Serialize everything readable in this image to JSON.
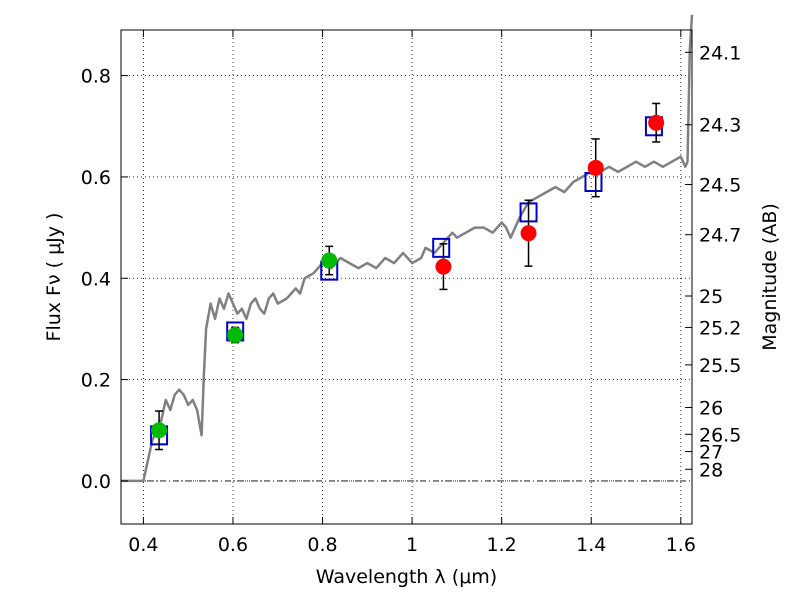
{
  "chart_data": {
    "type": "scatter",
    "title": "",
    "xlabel": "Wavelength  λ (μm)",
    "ylabel": "Flux  Fν  ( μJy )",
    "y2label": "Magnitude (AB)",
    "xlim": [
      0.35,
      1.625
    ],
    "ylim": [
      -0.085,
      0.89
    ],
    "grid": true,
    "xticks": [
      {
        "value": 0.4,
        "label": "0.4"
      },
      {
        "value": 0.6,
        "label": "0.6"
      },
      {
        "value": 0.8,
        "label": "0.8"
      },
      {
        "value": 1.0,
        "label": "1"
      },
      {
        "value": 1.2,
        "label": "1.2"
      },
      {
        "value": 1.4,
        "label": "1.4"
      },
      {
        "value": 1.6,
        "label": "1.6"
      }
    ],
    "yticks": [
      {
        "value": 0.0,
        "label": "0.0"
      },
      {
        "value": 0.2,
        "label": "0.2"
      },
      {
        "value": 0.4,
        "label": "0.4"
      },
      {
        "value": 0.6,
        "label": "0.6"
      },
      {
        "value": 0.8,
        "label": "0.8"
      }
    ],
    "magnitude_ticks": [
      {
        "flux": 0.846,
        "label": "24.1"
      },
      {
        "flux": 0.703,
        "label": "24.3"
      },
      {
        "flux": 0.585,
        "label": "24.5"
      },
      {
        "flux": 0.486,
        "label": "24.7"
      },
      {
        "flux": 0.365,
        "label": "25"
      },
      {
        "flux": 0.303,
        "label": "25.2"
      },
      {
        "flux": 0.229,
        "label": "25.5"
      },
      {
        "flux": 0.145,
        "label": "26"
      },
      {
        "flux": 0.092,
        "label": "26.5"
      },
      {
        "flux": 0.058,
        "label": "27"
      },
      {
        "flux": 0.023,
        "label": "28"
      }
    ],
    "zero_line": 0.0,
    "series": [
      {
        "kind": "line",
        "color": "#808080",
        "x": [
          0.35,
          0.4,
          0.42,
          0.44,
          0.45,
          0.46,
          0.47,
          0.48,
          0.49,
          0.5,
          0.51,
          0.52,
          0.53,
          0.535,
          0.54,
          0.55,
          0.56,
          0.57,
          0.58,
          0.59,
          0.6,
          0.61,
          0.62,
          0.63,
          0.64,
          0.65,
          0.66,
          0.67,
          0.68,
          0.69,
          0.7,
          0.72,
          0.74,
          0.75,
          0.76,
          0.78,
          0.8,
          0.82,
          0.84,
          0.86,
          0.88,
          0.9,
          0.92,
          0.94,
          0.96,
          0.98,
          1.0,
          1.02,
          1.03,
          1.05,
          1.07,
          1.09,
          1.1,
          1.12,
          1.14,
          1.16,
          1.18,
          1.2,
          1.21,
          1.22,
          1.24,
          1.26,
          1.28,
          1.3,
          1.32,
          1.34,
          1.36,
          1.38,
          1.4,
          1.42,
          1.44,
          1.46,
          1.48,
          1.5,
          1.52,
          1.54,
          1.56,
          1.58,
          1.6,
          1.61,
          1.615,
          1.62,
          1.625
        ],
        "y": [
          0.0,
          0.0,
          0.08,
          0.12,
          0.16,
          0.14,
          0.17,
          0.18,
          0.17,
          0.15,
          0.16,
          0.14,
          0.09,
          0.21,
          0.3,
          0.35,
          0.32,
          0.36,
          0.34,
          0.37,
          0.35,
          0.33,
          0.34,
          0.32,
          0.35,
          0.36,
          0.34,
          0.33,
          0.36,
          0.37,
          0.35,
          0.36,
          0.38,
          0.37,
          0.4,
          0.41,
          0.43,
          0.42,
          0.44,
          0.43,
          0.42,
          0.43,
          0.42,
          0.44,
          0.43,
          0.45,
          0.43,
          0.44,
          0.46,
          0.45,
          0.47,
          0.49,
          0.48,
          0.49,
          0.5,
          0.5,
          0.49,
          0.51,
          0.5,
          0.48,
          0.52,
          0.55,
          0.56,
          0.57,
          0.58,
          0.57,
          0.59,
          0.6,
          0.61,
          0.61,
          0.62,
          0.61,
          0.62,
          0.63,
          0.62,
          0.63,
          0.62,
          0.63,
          0.64,
          0.62,
          0.63,
          0.85,
          0.92
        ]
      },
      {
        "kind": "model-photometry",
        "marker": "open-square",
        "color": "#0000cc",
        "x": [
          0.435,
          0.605,
          0.815,
          1.065,
          1.26,
          1.405,
          1.54
        ],
        "y": [
          0.09,
          0.295,
          0.415,
          0.46,
          0.53,
          0.59,
          0.7
        ]
      },
      {
        "kind": "observed",
        "marker": "filled-circle",
        "color": "#00bb00",
        "x": [
          0.435,
          0.605,
          0.815
        ],
        "y": [
          0.1,
          0.288,
          0.435
        ],
        "yerr": [
          0.038,
          0.015,
          0.028
        ]
      },
      {
        "kind": "observed",
        "marker": "filled-circle",
        "color": "#ff0000",
        "x": [
          1.07,
          1.26,
          1.41,
          1.545
        ],
        "y": [
          0.423,
          0.489,
          0.618,
          0.707
        ],
        "yerr": [
          0.045,
          0.065,
          0.057,
          0.038
        ]
      }
    ]
  }
}
